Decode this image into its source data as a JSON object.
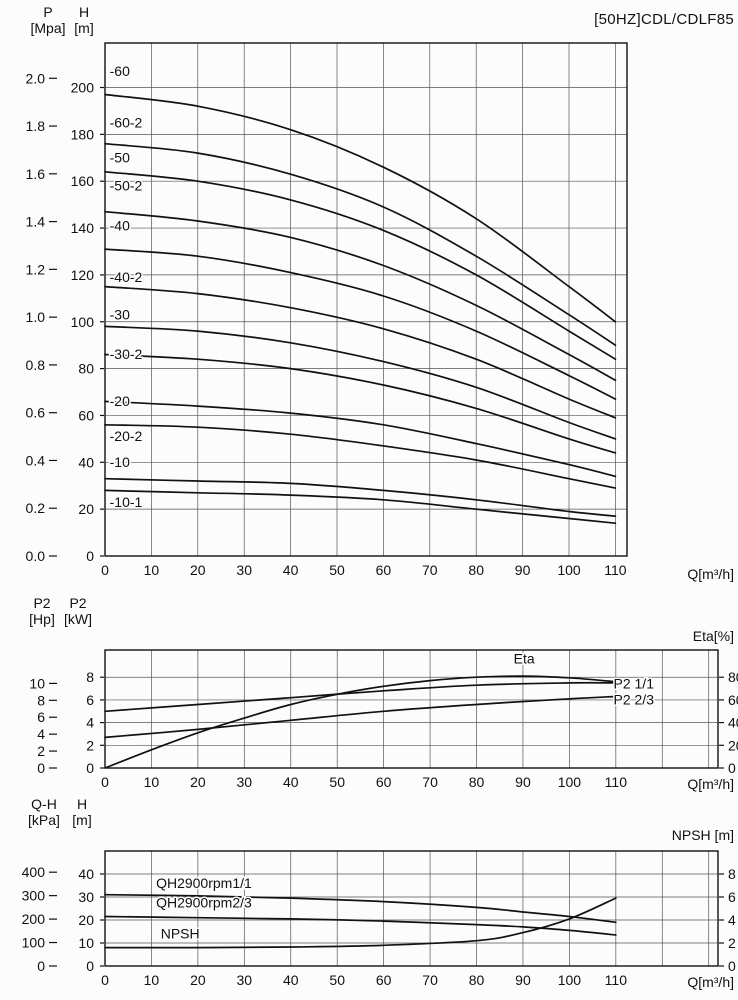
{
  "title": "[50HZ]CDL/CDLF85",
  "colors": {
    "curve": "#111111",
    "grid": "#555555",
    "border": "#111111",
    "text": "#111111",
    "background": "#fcfcfc"
  },
  "chart_data": [
    {
      "type": "line",
      "name": "head-capacity",
      "x_axis": {
        "min": 0,
        "max": 112.5,
        "grid_step": 10,
        "decimals": 0,
        "ticks": [
          0,
          10,
          20,
          30,
          40,
          50,
          60,
          70,
          80,
          90,
          100,
          110
        ],
        "label": "Q[m³/h]"
      },
      "y_axis": {
        "min": 0,
        "max": 219,
        "grid_step": 20,
        "decimals": 0,
        "ticks": [
          0,
          20,
          40,
          60,
          80,
          100,
          120,
          140,
          160,
          180,
          200
        ],
        "title": "H\n[m]"
      },
      "y_axis_left2": {
        "ticks": [
          0,
          0.2,
          0.4,
          0.6,
          0.8,
          1.0,
          1.2,
          1.4,
          1.6,
          1.8,
          2.0
        ],
        "to_primary": 101.97,
        "decimals": 1,
        "title": "P\n[Mpa]"
      },
      "series": [
        {
          "label": "-60",
          "axis": "primary",
          "x": [
            0,
            20,
            40,
            60,
            80,
            100,
            110
          ],
          "y": [
            197,
            192,
            182,
            166,
            144,
            115,
            100
          ],
          "label_at": [
            1,
            205
          ]
        },
        {
          "label": "-60-2",
          "axis": "primary",
          "x": [
            0,
            20,
            40,
            60,
            80,
            100,
            110
          ],
          "y": [
            176,
            172,
            163,
            149,
            128,
            103,
            90
          ],
          "label_at": [
            1,
            183
          ]
        },
        {
          "label": "-50",
          "axis": "primary",
          "x": [
            0,
            20,
            40,
            60,
            80,
            100,
            110
          ],
          "y": [
            164,
            160,
            152,
            139,
            120,
            96,
            84
          ],
          "label_at": [
            1,
            168
          ]
        },
        {
          "label": "-50-2",
          "axis": "primary",
          "x": [
            0,
            20,
            40,
            60,
            80,
            100,
            110
          ],
          "y": [
            147,
            143,
            136,
            124,
            107,
            86,
            75
          ],
          "label_at": [
            1,
            156
          ]
        },
        {
          "label": "-40",
          "axis": "primary",
          "x": [
            0,
            20,
            40,
            60,
            80,
            100,
            110
          ],
          "y": [
            131,
            128,
            121,
            111,
            96,
            77,
            67
          ],
          "label_at": [
            1,
            139
          ]
        },
        {
          "label": "-40-2",
          "axis": "primary",
          "x": [
            0,
            20,
            40,
            60,
            80,
            100,
            110
          ],
          "y": [
            115,
            112,
            106,
            97,
            84,
            67,
            59
          ],
          "label_at": [
            1,
            117
          ]
        },
        {
          "label": "-30",
          "axis": "primary",
          "x": [
            0,
            20,
            40,
            60,
            80,
            100,
            110
          ],
          "y": [
            98,
            96,
            91,
            83,
            72,
            57,
            50
          ],
          "label_at": [
            1,
            101
          ]
        },
        {
          "label": "-30-2",
          "axis": "primary",
          "x": [
            0,
            20,
            40,
            60,
            80,
            100,
            110
          ],
          "y": [
            86,
            84,
            80,
            73,
            63,
            50,
            44
          ],
          "label_at": [
            1,
            84
          ]
        },
        {
          "label": "-20",
          "axis": "primary",
          "x": [
            0,
            20,
            40,
            60,
            80,
            100,
            110
          ],
          "y": [
            66,
            64,
            61,
            56,
            48,
            39,
            34
          ],
          "label_at": [
            1,
            64
          ]
        },
        {
          "label": "-20-2",
          "axis": "primary",
          "x": [
            0,
            20,
            40,
            60,
            80,
            100,
            110
          ],
          "y": [
            56,
            55,
            52,
            47,
            41,
            33,
            29
          ],
          "label_at": [
            1,
            49
          ]
        },
        {
          "label": "-10",
          "axis": "primary",
          "x": [
            0,
            20,
            40,
            60,
            80,
            100,
            110
          ],
          "y": [
            33,
            32,
            31,
            28,
            24,
            19,
            17
          ],
          "label_at": [
            1,
            38
          ]
        },
        {
          "label": "-10-1",
          "axis": "primary",
          "x": [
            0,
            20,
            40,
            60,
            80,
            100,
            110
          ],
          "y": [
            28,
            27,
            26,
            24,
            20,
            16,
            14
          ],
          "label_at": [
            1,
            21
          ]
        }
      ]
    },
    {
      "type": "line",
      "name": "power-efficiency",
      "x_axis": {
        "min": 0,
        "max": 132,
        "grid_step": 10,
        "decimals": 0,
        "ticks": [
          0,
          10,
          20,
          30,
          40,
          50,
          60,
          70,
          80,
          90,
          100,
          110
        ],
        "label": "Q[m³/h]"
      },
      "y_axis": {
        "min": 0,
        "max": 10.4,
        "grid_step": 2,
        "decimals": 0,
        "ticks": [
          0,
          2,
          4,
          6,
          8
        ],
        "title": "P2\n[kW]"
      },
      "y_axis_left2": {
        "ticks": [
          0,
          2,
          4,
          6,
          8,
          10
        ],
        "to_primary": 0.7457,
        "decimals": 0,
        "title": "P2\n[Hp]"
      },
      "y_axis_right": {
        "ticks": [
          0,
          20,
          40,
          60,
          80
        ],
        "to_primary": 0.1,
        "decimals": 0,
        "title": "Eta[%]"
      },
      "series": [
        {
          "label": "Eta",
          "axis": "right",
          "x": [
            0,
            10,
            20,
            30,
            40,
            50,
            60,
            70,
            80,
            90,
            100,
            110
          ],
          "y": [
            0,
            16,
            31,
            44,
            56,
            65,
            72,
            77,
            80,
            81,
            79.5,
            76
          ],
          "label_at": [
            88,
            9.2
          ]
        },
        {
          "label": "P2 1/1",
          "axis": "primary",
          "x": [
            0,
            20,
            40,
            60,
            80,
            100,
            110
          ],
          "y": [
            5.0,
            5.6,
            6.2,
            6.8,
            7.3,
            7.5,
            7.5
          ],
          "label_at": [
            109.5,
            7.0
          ]
        },
        {
          "label": "P2 2/3",
          "axis": "primary",
          "x": [
            0,
            20,
            40,
            60,
            80,
            100,
            110
          ],
          "y": [
            2.7,
            3.4,
            4.2,
            5.0,
            5.6,
            6.1,
            6.3
          ],
          "label_at": [
            109.5,
            5.6
          ]
        }
      ]
    },
    {
      "type": "line",
      "name": "inlet-pressure-npsh",
      "x_axis": {
        "min": 0,
        "max": 132,
        "grid_step": 10,
        "decimals": 0,
        "ticks": [
          0,
          10,
          20,
          30,
          40,
          50,
          60,
          70,
          80,
          90,
          100,
          110
        ],
        "label": "Q[m³/h]"
      },
      "y_axis": {
        "min": 0,
        "max": 50,
        "grid_step": 10,
        "decimals": 0,
        "ticks": [
          0,
          10,
          20,
          30,
          40
        ],
        "title": "H\n[m]"
      },
      "y_axis_left2": {
        "ticks": [
          0,
          100,
          200,
          300,
          400
        ],
        "to_primary": 0.10197,
        "decimals": 0,
        "title": "Q-H\n[kPa]"
      },
      "y_axis_right": {
        "ticks": [
          0,
          2,
          4,
          6,
          8
        ],
        "to_primary": 5,
        "decimals": 0,
        "title": "NPSH [m]"
      },
      "series": [
        {
          "label": "QH2900rpm1/1",
          "axis": "primary",
          "x": [
            0,
            20,
            40,
            60,
            80,
            90,
            100,
            110
          ],
          "y": [
            31,
            30.5,
            29.5,
            28,
            25.5,
            23.5,
            21.5,
            19
          ],
          "label_at": [
            11,
            34
          ]
        },
        {
          "label": "QH2900rpm2/3",
          "axis": "primary",
          "x": [
            0,
            20,
            40,
            60,
            80,
            90,
            100,
            110
          ],
          "y": [
            21.5,
            21,
            20.5,
            19.5,
            18,
            17,
            15.5,
            13.5
          ],
          "label_at": [
            11,
            25.5
          ]
        },
        {
          "label": "NPSH",
          "axis": "right",
          "x": [
            0,
            20,
            40,
            60,
            80,
            90,
            100,
            110
          ],
          "y": [
            1.6,
            1.6,
            1.65,
            1.8,
            2.2,
            2.9,
            4.1,
            5.9
          ],
          "label_at": [
            12,
            12
          ]
        }
      ]
    }
  ]
}
